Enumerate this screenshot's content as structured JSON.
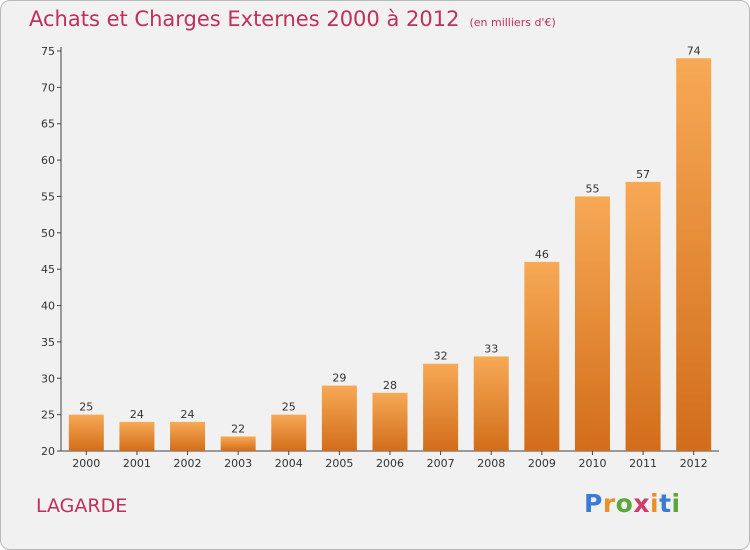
{
  "title": "Achats et Charges Externes 2000 à 2012",
  "unit": "(en milliers d'€)",
  "commune": "LAGARDE",
  "logo": {
    "letters": [
      "P",
      "r",
      "o",
      "x",
      "i",
      "t",
      "i"
    ],
    "colors": [
      "#3a7bd5",
      "#e8912a",
      "#5aa83a",
      "#d23a6b",
      "#e8912a",
      "#3a7bd5",
      "#5aa83a"
    ]
  },
  "colors": {
    "title": "#c0305a",
    "bar_top": "#f7a955",
    "bar_bottom": "#d26d1a",
    "background": "#f1f1f1"
  },
  "chart_data": {
    "type": "bar",
    "categories": [
      "2000",
      "2001",
      "2002",
      "2003",
      "2004",
      "2005",
      "2006",
      "2007",
      "2008",
      "2009",
      "2010",
      "2011",
      "2012"
    ],
    "values": [
      25,
      24,
      24,
      22,
      25,
      29,
      28,
      32,
      33,
      46,
      55,
      57,
      74
    ],
    "ylim": [
      20,
      75
    ],
    "yticks": [
      20,
      25,
      30,
      35,
      40,
      45,
      50,
      55,
      60,
      65,
      70,
      75
    ],
    "grid": false,
    "legend": "none"
  }
}
